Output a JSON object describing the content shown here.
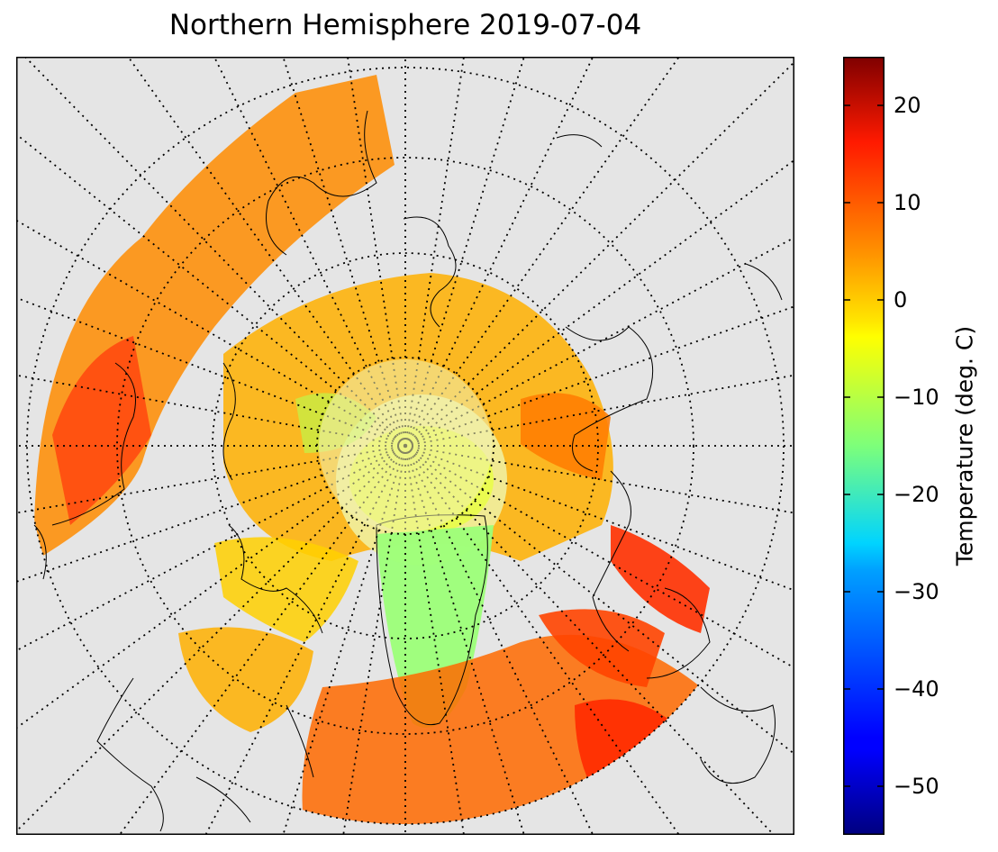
{
  "title": "Northern Hemisphere 2019-07-04",
  "colorbar": {
    "label": "Temperature (deg. C)",
    "ticks": [
      "20",
      "10",
      "0",
      "−10",
      "−20",
      "−30",
      "−40",
      "−50"
    ],
    "min": -55,
    "max": 25,
    "colormap": "jet"
  },
  "map": {
    "projection": "north-polar-stereographic",
    "background_color": "#e5e5e5",
    "graticule": "dotted",
    "variable": "surface temperature"
  }
}
